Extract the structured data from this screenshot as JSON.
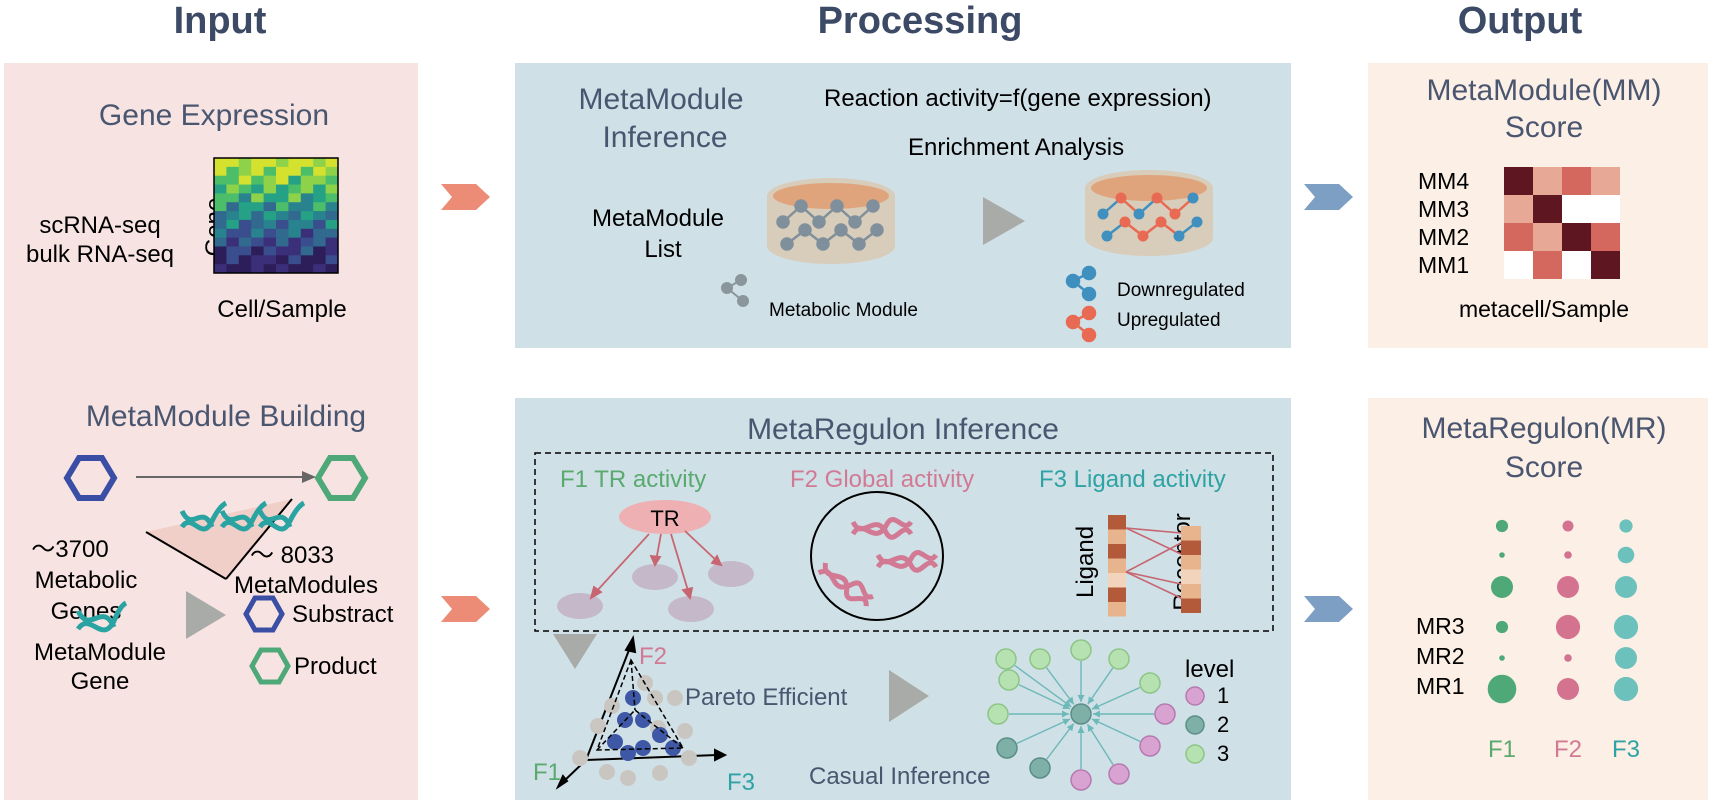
{
  "columns": {
    "input": "Input",
    "processing": "Processing",
    "output": "Output"
  },
  "gene_expression": {
    "title": "Gene Expression",
    "methods": [
      "scRNA-seq",
      "bulk RNA-seq"
    ],
    "y_label": "Gene",
    "x_label": "Cell/Sample"
  },
  "module_building": {
    "title": "MetaModule Building",
    "metabolic_genes": [
      "～3700",
      "Metabolic",
      "Genes"
    ],
    "metamodules": [
      "～ 8033",
      "MetaModules"
    ],
    "legend_gene": [
      "MetaModule",
      "Gene"
    ],
    "legend_substract": "Substract",
    "legend_product": "Product"
  },
  "mm_inference": {
    "title": [
      "MetaModule",
      "Inference"
    ],
    "formula": "Reaction activity=f(gene expression)",
    "enrichment": "Enrichment Analysis",
    "list_label": [
      "MetaModule",
      "List"
    ],
    "metabolic_module": "Metabolic Module",
    "downregulated": "Downregulated",
    "upregulated": "Upregulated"
  },
  "mr_inference": {
    "title": "MetaRegulon Inference",
    "f1": "F1 TR activity",
    "f2": "F2 Global activity",
    "f3": "F3 Ligand activity",
    "tr": "TR",
    "ligand": "Ligand",
    "receptor": "Receptor",
    "axis_f1": "F1",
    "axis_f2": "F2",
    "axis_f3": "F3",
    "pareto": "Pareto Efficient",
    "causal": "Casual Inference",
    "level_title": "level",
    "levels": [
      "1",
      "2",
      "3"
    ]
  },
  "mm_score": {
    "title": [
      "MetaModule(MM)",
      "Score"
    ],
    "rows": [
      "MM4",
      "MM3",
      "MM2",
      "MM1"
    ],
    "x_label": "metacell/Sample",
    "matrix": [
      [
        4,
        2,
        3,
        2
      ],
      [
        2,
        4,
        0,
        0
      ],
      [
        3,
        2,
        4,
        3
      ],
      [
        0,
        3,
        0,
        4
      ]
    ]
  },
  "mr_score": {
    "title": [
      "MetaRegulon(MR)",
      "Score"
    ],
    "rows": [
      "MR3",
      "MR2",
      "MR1"
    ],
    "cols": [
      "F1",
      "F2",
      "F3"
    ],
    "dot_sizes": [
      [
        0.55,
        0.5,
        0.6
      ],
      [
        0.25,
        0.35,
        0.75
      ],
      [
        1.0,
        1.0,
        1.0
      ],
      [
        0.55,
        1.1,
        1.1
      ],
      [
        0.25,
        0.35,
        1.0
      ],
      [
        1.3,
        1.0,
        1.1
      ]
    ],
    "colors": {
      "f1": "#4fa878",
      "f2": "#d4738f",
      "f3": "#6cc1bd"
    }
  },
  "colors": {
    "heading": "#3d4a66",
    "input_bg": "#f7e4e2",
    "processing_bg": "#cfe0e7",
    "output_bg": "#fcefe6",
    "arrow_left": "#ec8c77",
    "arrow_right": "#7d9fc4",
    "gray": "#a8aba8",
    "green_text": "#5aaa6f",
    "pink_text": "#d27a94",
    "teal_text": "#2fa3a3"
  }
}
